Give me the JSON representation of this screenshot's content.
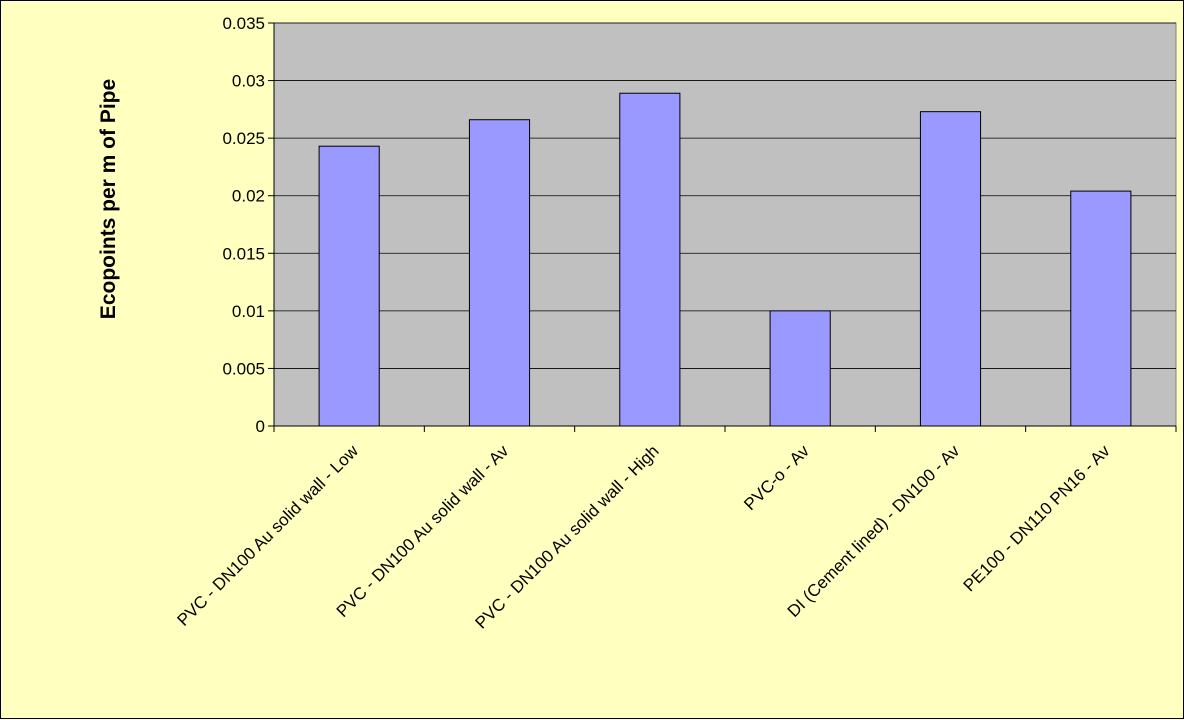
{
  "chart_data": {
    "type": "bar",
    "title": "",
    "xlabel": "",
    "ylabel": "Ecopoints per m of Pipe",
    "ylim": [
      0,
      0.035
    ],
    "yticks": [
      "0",
      "0.005",
      "0.01",
      "0.015",
      "0.02",
      "0.025",
      "0.03",
      "0.035"
    ],
    "yticks_values": [
      0,
      0.005,
      0.01,
      0.015,
      0.02,
      0.025,
      0.03,
      0.035
    ],
    "grid": true,
    "legend": "none",
    "categories": [
      "PVC - DN100 Au solid wall - Low",
      "PVC - DN100 Au solid wall - Av",
      "PVC - DN100 Au solid wall - High",
      "PVC-o  - Av",
      "DI (Cement lined) - DN100 - Av",
      "PE100 - DN110 PN16 - Av"
    ],
    "values": [
      0.0243,
      0.0266,
      0.0289,
      0.01,
      0.0273,
      0.0204
    ],
    "colors": {
      "plot_background": "#c0c0c0",
      "page_background": "#ffffc0",
      "bar_fill": "#9999ff",
      "bar_stroke": "#000000"
    }
  }
}
